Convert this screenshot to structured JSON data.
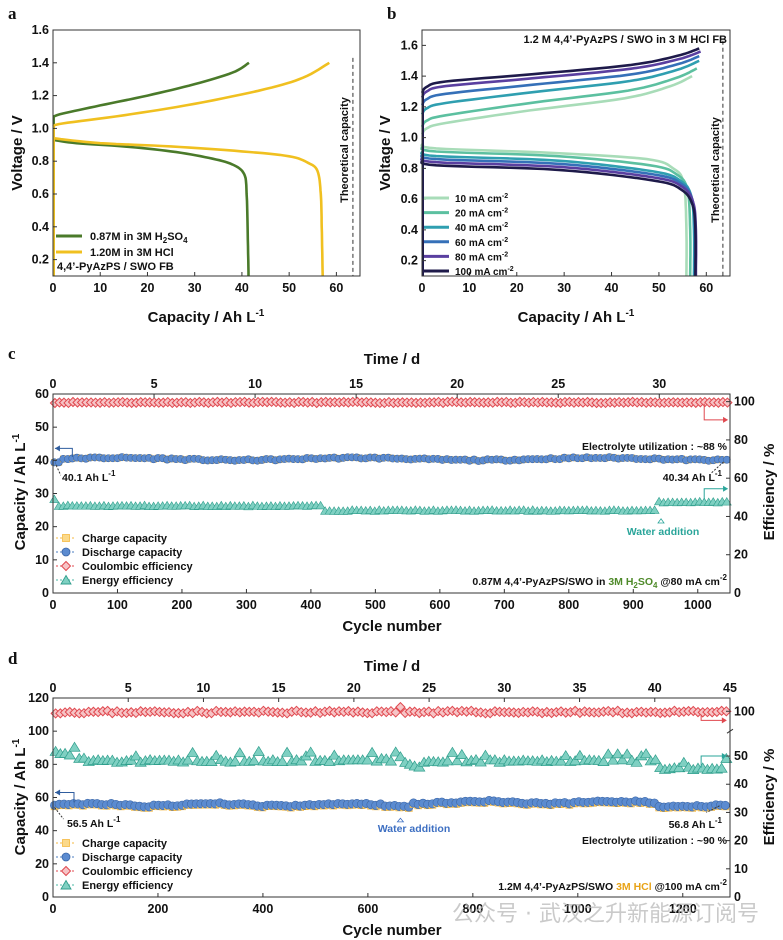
{
  "figure": {
    "watermark": "公众号 · 武汉之升新能源订阅号"
  },
  "chart_data": [
    {
      "panel": "a",
      "type": "line",
      "xlabel": "Capacity / Ah L-1",
      "ylabel": "Voltage / V",
      "xlim": [
        0,
        65
      ],
      "ylim": [
        0.1,
        1.6
      ],
      "xticks": [
        "0",
        "10",
        "20",
        "30",
        "40",
        "50",
        "60"
      ],
      "yticks": [
        "0.2",
        "0.4",
        "0.6",
        "0.8",
        "1.0",
        "1.2",
        "1.4",
        "1.6"
      ],
      "xtick_values": [
        0,
        10,
        20,
        30,
        40,
        50,
        60
      ],
      "ytick_values": [
        0.2,
        0.4,
        0.6,
        0.8,
        1.0,
        1.2,
        1.4,
        1.6
      ],
      "theoretical_capacity": 63.5,
      "theoretical_label": "Theoretical capacity",
      "legend_position": "bottom-left",
      "annotation": "4,4'-PyAzPS / SWO FB",
      "series": [
        {
          "name": "0.87M  in 3M H2SO4",
          "color": "#4a7a2a",
          "charge": [
            [
              0,
              1.07
            ],
            [
              2,
              1.09
            ],
            [
              10,
              1.14
            ],
            [
              20,
              1.2
            ],
            [
              30,
              1.27
            ],
            [
              38,
              1.34
            ],
            [
              41.5,
              1.4
            ]
          ],
          "discharge": [
            [
              0,
              0.93
            ],
            [
              5,
              0.91
            ],
            [
              15,
              0.89
            ],
            [
              25,
              0.86
            ],
            [
              33,
              0.82
            ],
            [
              38,
              0.78
            ],
            [
              40.5,
              0.72
            ],
            [
              41,
              0.6
            ],
            [
              41.2,
              0.4
            ],
            [
              41.4,
              0.1
            ]
          ]
        },
        {
          "name": "1.20M  in 3M HCl",
          "color": "#f0c020",
          "charge": [
            [
              0,
              1.01
            ],
            [
              2,
              1.03
            ],
            [
              15,
              1.08
            ],
            [
              30,
              1.15
            ],
            [
              45,
              1.24
            ],
            [
              53,
              1.31
            ],
            [
              58.5,
              1.4
            ]
          ],
          "discharge": [
            [
              0,
              0.94
            ],
            [
              10,
              0.91
            ],
            [
              25,
              0.89
            ],
            [
              40,
              0.86
            ],
            [
              50,
              0.83
            ],
            [
              54,
              0.79
            ],
            [
              56,
              0.74
            ],
            [
              56.7,
              0.6
            ],
            [
              56.9,
              0.4
            ],
            [
              57.1,
              0.1
            ]
          ]
        }
      ]
    },
    {
      "panel": "b",
      "type": "line",
      "title": "1.2 M 4,4'-PyAzPS / SWO in 3 M HCl FB",
      "xlabel": "Capacity / Ah L-1",
      "ylabel": "Voltage / V",
      "xlim": [
        0,
        65
      ],
      "ylim": [
        0.1,
        1.7
      ],
      "xticks": [
        "0",
        "10",
        "20",
        "30",
        "40",
        "50",
        "60"
      ],
      "yticks": [
        "0.2",
        "0.4",
        "0.6",
        "0.8",
        "1.0",
        "1.2",
        "1.4",
        "1.6"
      ],
      "xtick_values": [
        0,
        10,
        20,
        30,
        40,
        50,
        60
      ],
      "ytick_values": [
        0.2,
        0.4,
        0.6,
        0.8,
        1.0,
        1.2,
        1.4,
        1.6
      ],
      "theoretical_capacity": 63.5,
      "theoretical_label": "Theoretical capacity",
      "legend_position": "bottom-left",
      "series": [
        {
          "name": "10 mA cm-2",
          "color": "#a8dcb8",
          "charge_start": 1.04,
          "charge_end": 1.4,
          "charge_cap": 57.0,
          "dis_start": 0.96,
          "dis_knee": 0.8,
          "dis_cap": 55.8
        },
        {
          "name": "20 mA cm-2",
          "color": "#5cc0a0",
          "charge_start": 1.09,
          "charge_end": 1.45,
          "charge_cap": 58.0,
          "dis_start": 0.94,
          "dis_knee": 0.76,
          "dis_cap": 56.6
        },
        {
          "name": "40 mA cm-2",
          "color": "#2f9fb0",
          "charge_start": 1.17,
          "charge_end": 1.5,
          "charge_cap": 58.5,
          "dis_start": 0.91,
          "dis_knee": 0.72,
          "dis_cap": 57.4
        },
        {
          "name": "60 mA cm-2",
          "color": "#3570b8",
          "charge_start": 1.23,
          "charge_end": 1.53,
          "charge_cap": 58.5,
          "dis_start": 0.89,
          "dis_knee": 0.7,
          "dis_cap": 57.6
        },
        {
          "name": "80 mA cm-2",
          "color": "#5a3fa0",
          "charge_start": 1.28,
          "charge_end": 1.56,
          "charge_cap": 58.8,
          "dis_start": 0.87,
          "dis_knee": 0.68,
          "dis_cap": 57.8
        },
        {
          "name": "100 mA cm-2",
          "color": "#1e1a4a",
          "charge_start": 1.31,
          "charge_end": 1.58,
          "charge_cap": 58.5,
          "dis_start": 0.85,
          "dis_knee": 0.66,
          "dis_cap": 57.7
        }
      ]
    },
    {
      "panel": "c",
      "type": "scatter",
      "xlabel": "Cycle number",
      "top_xlabel": "Time / d",
      "ylabel": "Capacity / Ah L-1",
      "ylabel2": "Efficiency / %",
      "xlim": [
        0,
        1050
      ],
      "top_xlim": [
        0,
        33.5
      ],
      "ylim": [
        0,
        60
      ],
      "y2lim": [
        0,
        104
      ],
      "xticks": [
        "0",
        "100",
        "200",
        "300",
        "400",
        "500",
        "600",
        "700",
        "800",
        "900",
        "1000"
      ],
      "xtick_values": [
        0,
        100,
        200,
        300,
        400,
        500,
        600,
        700,
        800,
        900,
        1000
      ],
      "top_xticks": [
        "0",
        "5",
        "10",
        "15",
        "20",
        "25",
        "30"
      ],
      "top_xtick_values": [
        0,
        5,
        10,
        15,
        20,
        25,
        30
      ],
      "yticks": [
        "0",
        "10",
        "20",
        "30",
        "40",
        "50",
        "60"
      ],
      "ytick_values": [
        0,
        10,
        20,
        30,
        40,
        50,
        60
      ],
      "y2ticks": [
        "0",
        "20",
        "40",
        "60",
        "80",
        "100"
      ],
      "y2tick_values": [
        0,
        20,
        40,
        60,
        80,
        100
      ],
      "legend_position": "bottom-left",
      "legend": [
        "Charge capacity",
        "Discharge capacity",
        "Coulombic efficiency",
        "Energy efficiency"
      ],
      "capacity": {
        "start": 40.1,
        "end": 40.34,
        "mean": 40.4
      },
      "coulombic_efficiency": {
        "mean": 99.8
      },
      "energy_efficiency": {
        "phase1": 45.5,
        "phase2": 43.0,
        "after_water": 47.5,
        "break_cycle": 420,
        "water_cycle": 940
      },
      "annotations": {
        "start_cap": "40.1 Ah L-1",
        "end_cap": "40.34 Ah L-1",
        "utilization": "Electrolyte utilization : ~88 %",
        "water": "Water addition",
        "condition_prefix": "0.87M 4,4'-PyAzPS/SWO in ",
        "condition_acid": "3M H2SO4",
        "condition_suffix": " @80 mA cm-2"
      }
    },
    {
      "panel": "d",
      "type": "scatter",
      "xlabel": "Cycle number",
      "top_xlabel": "Time / d",
      "ylabel": "Capacity / Ah L-1",
      "ylabel2": "Efficiency / %",
      "xlim": [
        0,
        1290
      ],
      "top_xlim": [
        0,
        45
      ],
      "ylim": [
        0,
        120
      ],
      "xticks": [
        "0",
        "200",
        "400",
        "600",
        "800",
        "1000",
        "1200"
      ],
      "xtick_values": [
        0,
        200,
        400,
        600,
        800,
        1000,
        1200
      ],
      "top_xticks": [
        "0",
        "5",
        "10",
        "15",
        "20",
        "25",
        "30",
        "35",
        "40",
        "45"
      ],
      "top_xtick_values": [
        0,
        5,
        10,
        15,
        20,
        25,
        30,
        35,
        40,
        45
      ],
      "yticks": [
        "0",
        "20",
        "40",
        "60",
        "80",
        "100",
        "120"
      ],
      "ytick_values": [
        0,
        20,
        40,
        60,
        80,
        100,
        120
      ],
      "y2ticks": [
        "0",
        "10",
        "20",
        "30",
        "40",
        "50",
        "100"
      ],
      "legend_position": "bottom-left",
      "legend": [
        "Charge capacity",
        "Discharge capacity",
        "Coulombic efficiency",
        "Energy efficiency"
      ],
      "capacity": {
        "start": 56.5,
        "end": 56.8,
        "mean": 56
      },
      "coulombic_efficiency": {
        "mean": 99.5
      },
      "energy_efficiency": {
        "mean": 48
      },
      "annotations": {
        "start_cap": "56.5 Ah L-1",
        "end_cap": "56.8 Ah L-1",
        "utilization": "Electrolyte utilization : ~90 %",
        "water": "Water addition",
        "water_cycle": 660,
        "condition_prefix": "1.2M 4,4'-PyAzPS/SWO ",
        "condition_acid": "3M HCl",
        "condition_suffix": " @100 mA cm-2"
      }
    }
  ],
  "text": {
    "a": {
      "label": "a",
      "xlabel": "Capacity / Ah L",
      "ylabel": "Voltage / V",
      "leg1_pre": "0.87M  in 3M H",
      "leg1_sub1": "2",
      "leg1_mid": "SO",
      "leg1_sub2": "4",
      "leg2": "1.20M  in 3M HCl",
      "note": "4,4’-PyAzPS / SWO FB",
      "theo": "Theoretical capacity"
    },
    "b": {
      "label": "b",
      "xlabel": "Capacity / Ah L",
      "ylabel": "Voltage / V",
      "title": "1.2 M 4,4’-PyAzPS / SWO in 3 M HCl FB",
      "theo": "Theoretical capacity"
    },
    "c": {
      "label": "c",
      "xlabel": "Cycle number",
      "top": "Time / d",
      "ylabel": "Capacity / Ah L",
      "ylabel2": "Efficiency / %",
      "start": "40.1 Ah L",
      "end": "40.34 Ah L",
      "util": "Electrolyte utilization : ~88 %",
      "water": "Water addition",
      "cond1": "0.87M 4,4’-PyAzPS/SWO in ",
      "cond2": "3M H",
      "cond3": "2",
      "cond4": "SO",
      "cond5": "4",
      "cond6": " @80 mA cm"
    },
    "d": {
      "label": "d",
      "xlabel": "Cycle number",
      "top": "Time / d",
      "ylabel": "Capacity / Ah L",
      "ylabel2": "Efficiency / %",
      "start": "56.5 Ah L",
      "end": "56.8 Ah L",
      "util": "Electrolyte utilization : ~90 %",
      "water": "Water addition",
      "cond1": "1.2M 4,4’-PyAzPS/SWO ",
      "cond2": "3M HCl",
      "cond3": " @100 mA cm"
    },
    "legend": {
      "charge": "Charge capacity",
      "discharge": "Discharge capacity",
      "ce": "Coulombic efficiency",
      "ee": "Energy efficiency"
    },
    "sup_neg1": "-1",
    "sup_neg2": "-2"
  },
  "colors": {
    "charge": "#f5b942",
    "discharge": "#4a7cc2",
    "ce": "#e0484f",
    "ee": "#4bb8a5",
    "water_c": "#2aa59a",
    "water_d": "#3d6fc2",
    "hcl": "#e8a317",
    "h2so4": "#4f8a2a"
  }
}
